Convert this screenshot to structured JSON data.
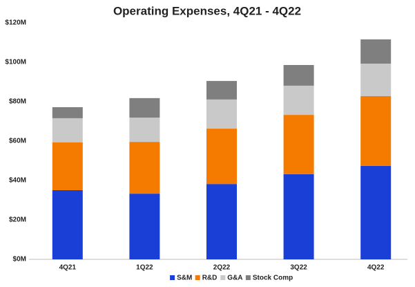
{
  "chart_data": {
    "type": "stacked_bar",
    "title": "Operating Expenses, 4Q21 - 4Q22",
    "categories": [
      "4Q21",
      "1Q22",
      "2Q22",
      "3Q22",
      "4Q22"
    ],
    "series": [
      {
        "name": "S&M",
        "color": "#1a3fd6",
        "values": [
          35.1,
          33.3,
          38.2,
          43.2,
          47.4
        ]
      },
      {
        "name": "R&D",
        "color": "#f47a00",
        "values": [
          24.2,
          26.3,
          28.1,
          30.1,
          35.4
        ]
      },
      {
        "name": "G&A",
        "color": "#c9c9c9",
        "values": [
          12.3,
          12.3,
          14.8,
          14.8,
          16.5
        ]
      },
      {
        "name": "Stock Comp",
        "color": "#7f7f7f",
        "values": [
          5.6,
          9.9,
          9.4,
          10.5,
          12.3
        ]
      }
    ],
    "ylim": [
      0,
      120
    ],
    "yticks": [
      {
        "value": 0,
        "label": "$0M"
      },
      {
        "value": 20,
        "label": "$20M"
      },
      {
        "value": 40,
        "label": "$40M"
      },
      {
        "value": 60,
        "label": "$60M"
      },
      {
        "value": 80,
        "label": "$80M"
      },
      {
        "value": 100,
        "label": "$100M"
      },
      {
        "value": 120,
        "label": "$120M"
      }
    ],
    "grid": false,
    "legend": "bottom"
  }
}
